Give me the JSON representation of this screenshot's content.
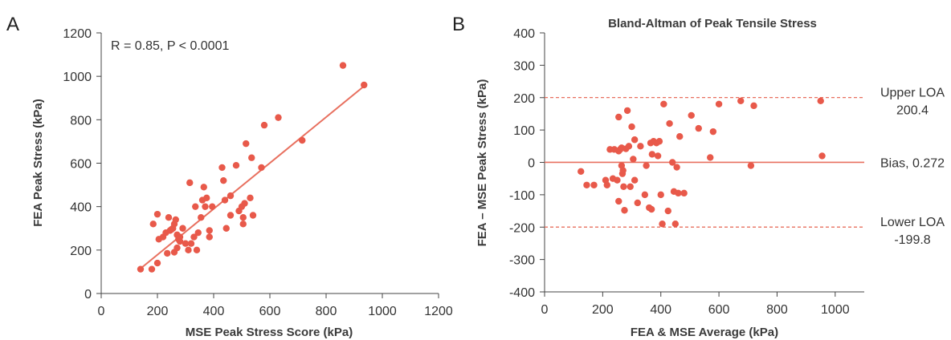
{
  "panels": {
    "a_letter": "A",
    "b_letter": "B"
  },
  "colors": {
    "points": "#e8594a",
    "line": "#e8705f",
    "axis": "#444444"
  },
  "chart_data": [
    {
      "type": "scatter",
      "panel": "A",
      "title": "",
      "xlabel": "MSE Peak Stress Score (kPa)",
      "ylabel": "FEA Peak Stress (kPa)",
      "xlim": [
        0,
        1200
      ],
      "ylim": [
        0,
        1200
      ],
      "xticks": [
        0,
        200,
        400,
        600,
        800,
        1000,
        1200
      ],
      "yticks": [
        0,
        200,
        400,
        600,
        800,
        1000,
        1200
      ],
      "annotation": "R = 0.85, P < 0.0001",
      "regression_line": {
        "x": [
          140,
          940
        ],
        "y": [
          115,
          960
        ]
      },
      "points": [
        [
          140,
          112
        ],
        [
          180,
          112
        ],
        [
          185,
          320
        ],
        [
          200,
          365
        ],
        [
          200,
          140
        ],
        [
          205,
          250
        ],
        [
          220,
          260
        ],
        [
          230,
          280
        ],
        [
          235,
          185
        ],
        [
          240,
          350
        ],
        [
          245,
          290
        ],
        [
          250,
          295
        ],
        [
          255,
          300
        ],
        [
          260,
          320
        ],
        [
          260,
          190
        ],
        [
          265,
          340
        ],
        [
          270,
          270
        ],
        [
          270,
          210
        ],
        [
          275,
          250
        ],
        [
          280,
          240
        ],
        [
          280,
          260
        ],
        [
          290,
          300
        ],
        [
          300,
          230
        ],
        [
          310,
          200
        ],
        [
          315,
          510
        ],
        [
          320,
          230
        ],
        [
          330,
          260
        ],
        [
          335,
          400
        ],
        [
          340,
          200
        ],
        [
          345,
          280
        ],
        [
          355,
          350
        ],
        [
          360,
          430
        ],
        [
          365,
          490
        ],
        [
          370,
          400
        ],
        [
          375,
          440
        ],
        [
          385,
          260
        ],
        [
          385,
          290
        ],
        [
          395,
          400
        ],
        [
          430,
          580
        ],
        [
          435,
          520
        ],
        [
          440,
          430
        ],
        [
          445,
          300
        ],
        [
          460,
          360
        ],
        [
          460,
          450
        ],
        [
          480,
          590
        ],
        [
          490,
          380
        ],
        [
          500,
          400
        ],
        [
          505,
          320
        ],
        [
          505,
          350
        ],
        [
          510,
          415
        ],
        [
          515,
          690
        ],
        [
          530,
          440
        ],
        [
          535,
          625
        ],
        [
          540,
          360
        ],
        [
          570,
          580
        ],
        [
          580,
          775
        ],
        [
          630,
          810
        ],
        [
          715,
          705
        ],
        [
          860,
          1050
        ],
        [
          935,
          960
        ]
      ]
    },
    {
      "type": "scatter",
      "panel": "B",
      "title": "Bland-Altman of Peak Tensile Stress",
      "xlabel": "FEA & MSE Average (kPa)",
      "ylabel": "FEA – MSE Peak Stress (kPa)",
      "xlim": [
        0,
        1100
      ],
      "ylim": [
        -400,
        400
      ],
      "xticks": [
        0,
        200,
        400,
        600,
        800,
        1000
      ],
      "yticks": [
        -400,
        -300,
        -200,
        -100,
        0,
        100,
        200,
        300,
        400
      ],
      "reference_lines": [
        {
          "label_line1": "Upper LOA",
          "label_line2": "200.4",
          "y": 200.4,
          "style": "dashed"
        },
        {
          "label_line1": "Bias, 0.272",
          "label_line2": "",
          "y": 0.272,
          "style": "solid"
        },
        {
          "label_line1": "Lower LOA",
          "label_line2": "-199.8",
          "y": -199.8,
          "style": "dashed"
        }
      ],
      "points": [
        [
          125,
          -28
        ],
        [
          145,
          -70
        ],
        [
          170,
          -70
        ],
        [
          210,
          -55
        ],
        [
          215,
          -70
        ],
        [
          225,
          40
        ],
        [
          235,
          -50
        ],
        [
          240,
          40
        ],
        [
          250,
          -55
        ],
        [
          255,
          35
        ],
        [
          255,
          -120
        ],
        [
          255,
          140
        ],
        [
          260,
          40
        ],
        [
          265,
          45
        ],
        [
          265,
          -10
        ],
        [
          268,
          -35
        ],
        [
          270,
          -25
        ],
        [
          272,
          -75
        ],
        [
          275,
          -148
        ],
        [
          280,
          42
        ],
        [
          285,
          160
        ],
        [
          290,
          50
        ],
        [
          295,
          -75
        ],
        [
          300,
          110
        ],
        [
          305,
          10
        ],
        [
          310,
          70
        ],
        [
          310,
          -55
        ],
        [
          320,
          -125
        ],
        [
          330,
          50
        ],
        [
          345,
          -100
        ],
        [
          350,
          -10
        ],
        [
          360,
          -140
        ],
        [
          365,
          60
        ],
        [
          368,
          -145
        ],
        [
          370,
          25
        ],
        [
          375,
          65
        ],
        [
          385,
          60
        ],
        [
          390,
          20
        ],
        [
          395,
          65
        ],
        [
          400,
          -100
        ],
        [
          405,
          -190
        ],
        [
          410,
          180
        ],
        [
          425,
          -150
        ],
        [
          430,
          120
        ],
        [
          440,
          0
        ],
        [
          445,
          -90
        ],
        [
          450,
          -190
        ],
        [
          455,
          -15
        ],
        [
          460,
          -95
        ],
        [
          465,
          80
        ],
        [
          480,
          -95
        ],
        [
          505,
          145
        ],
        [
          530,
          105
        ],
        [
          570,
          15
        ],
        [
          580,
          95
        ],
        [
          600,
          180
        ],
        [
          675,
          190
        ],
        [
          710,
          -10
        ],
        [
          720,
          175
        ],
        [
          950,
          190
        ],
        [
          955,
          20
        ]
      ]
    }
  ]
}
